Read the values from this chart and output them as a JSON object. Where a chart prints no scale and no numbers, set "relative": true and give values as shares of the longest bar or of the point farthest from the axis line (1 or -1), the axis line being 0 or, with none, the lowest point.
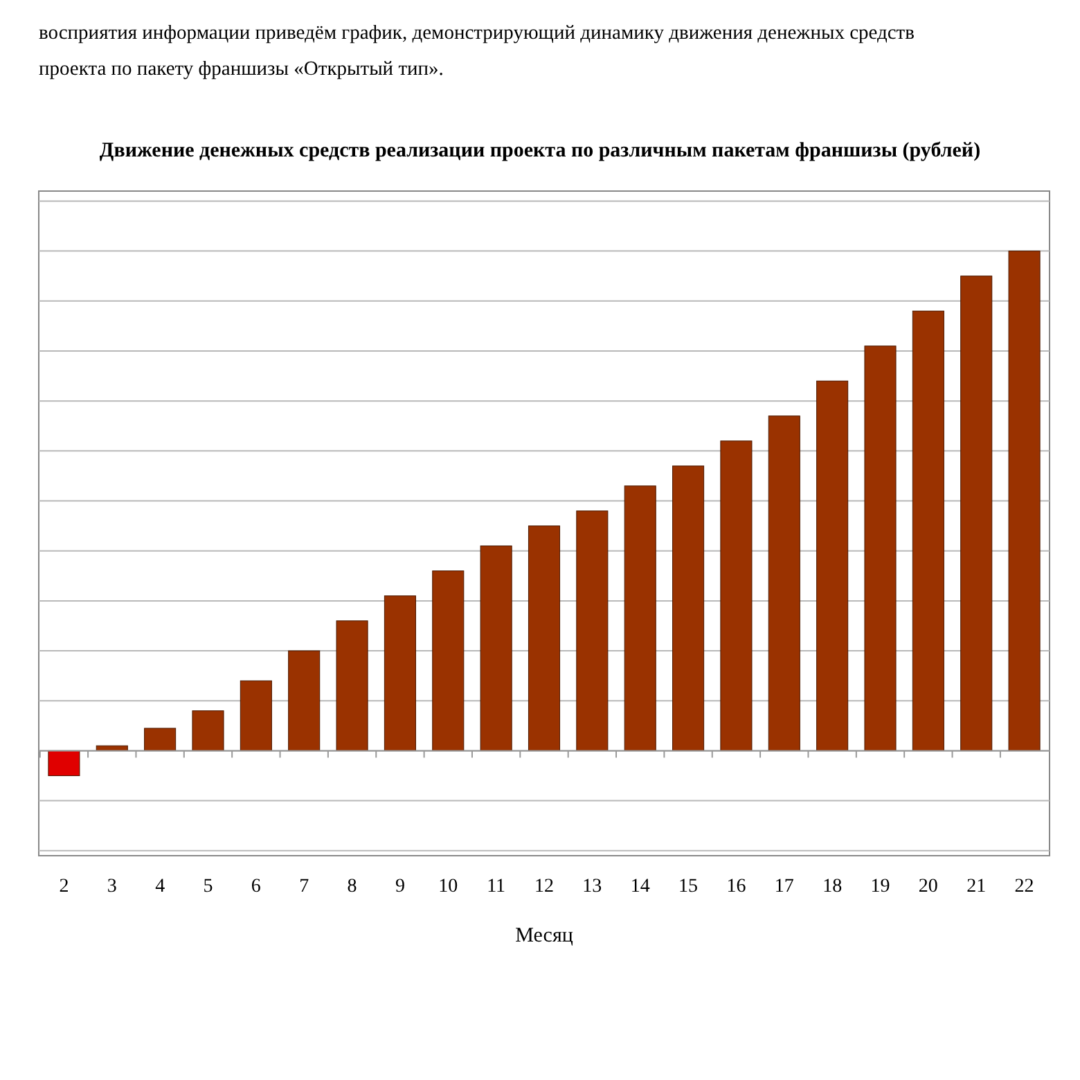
{
  "chart_data": {
    "type": "bar",
    "title": "Движение денежных средств реализации проекта по различным пакетам франшизы (рублей)",
    "xlabel": "Месяц",
    "relative": true,
    "grid": "y",
    "annotations": [
      "восприятия информации приведём график, демонстрирующий динамику движения денежных средств",
      "проекта по пакету франшизы «Открытый тип»."
    ],
    "categories": [
      "2",
      "3",
      "4",
      "5",
      "6",
      "7",
      "8",
      "9",
      "10",
      "11",
      "12",
      "13",
      "14",
      "15",
      "16",
      "17",
      "18",
      "19",
      "20",
      "21",
      "22"
    ],
    "values": [
      -0.05,
      0.01,
      0.045,
      0.08,
      0.14,
      0.2,
      0.26,
      0.31,
      0.36,
      0.41,
      0.45,
      0.48,
      0.53,
      0.57,
      0.62,
      0.67,
      0.74,
      0.81,
      0.88,
      0.95,
      1
    ],
    "colors": [
      "#e00000",
      "#9a3200",
      "#9a3200",
      "#9a3200",
      "#9a3200",
      "#9a3200",
      "#9a3200",
      "#9a3200",
      "#9a3200",
      "#9a3200",
      "#9a3200",
      "#9a3200",
      "#9a3200",
      "#9a3200",
      "#9a3200",
      "#9a3200",
      "#9a3200",
      "#9a3200",
      "#9a3200",
      "#9a3200",
      "#9a3200"
    ]
  }
}
